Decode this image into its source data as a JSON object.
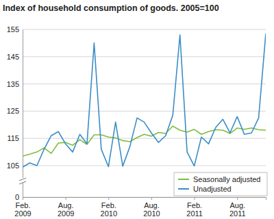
{
  "chart_data": {
    "type": "line",
    "title": "Index of household consumption of goods. 2005=100",
    "categories": [
      "Feb. 2009",
      null,
      null,
      null,
      null,
      null,
      "Aug. 2009",
      null,
      null,
      null,
      null,
      null,
      "Feb. 2010",
      null,
      null,
      null,
      null,
      null,
      "Aug. 2010",
      null,
      null,
      null,
      null,
      null,
      "Feb. 2011",
      null,
      null,
      null,
      null,
      null,
      "Aug. 2011",
      null,
      null,
      null,
      null
    ],
    "series": [
      {
        "name": "Seasonally adjusted",
        "color": "#7dbd3f",
        "values": [
          108.5,
          109.2,
          110,
          111.5,
          109.5,
          113.3,
          113.5,
          112.5,
          114.5,
          112.8,
          116.3,
          116.3,
          115.5,
          115.2,
          114.2,
          113.8,
          115.3,
          116.5,
          115.8,
          117.2,
          116.8,
          119.5,
          118,
          117.3,
          118.3,
          116.5,
          117.5,
          118.2,
          118,
          116.8,
          118.8,
          118.3,
          118.8,
          118.2,
          118
        ]
      },
      {
        "name": "Unadjusted",
        "color": "#3b8dc6",
        "values": [
          100,
          106,
          105,
          111,
          116,
          117.5,
          113,
          110,
          116.5,
          113,
          150,
          111,
          101.5,
          121,
          103,
          112,
          122.5,
          121,
          117,
          113.5,
          116,
          123.5,
          153,
          110,
          103.5,
          115.5,
          113,
          119,
          122,
          117,
          123,
          116.5,
          117,
          122.5,
          153.5
        ]
      }
    ],
    "ylim": [
      0,
      155
    ],
    "yticks": [
      0,
      105,
      115,
      125,
      135,
      145,
      155
    ],
    "grid": true,
    "legend": "lower right"
  }
}
